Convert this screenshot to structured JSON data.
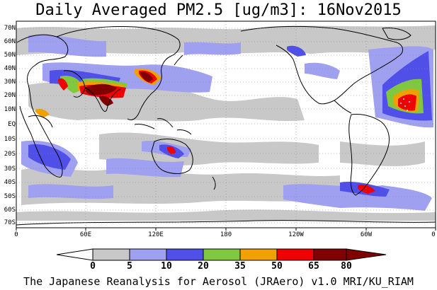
{
  "title": "Daily Averaged PM2.5 [ug/m3]: 16Nov2015",
  "footer": "The Japanese Reanalysis for Aerosol (JRAero) v1.0 MRI/KU_RIAM",
  "latitude_labels": [
    "70N",
    "60N",
    "50N",
    "40N",
    "30N",
    "20N",
    "10N",
    "EQ",
    "10S",
    "20S",
    "30S",
    "40S",
    "50S",
    "60S",
    "70S"
  ],
  "longitude_labels": [
    "0",
    "60E",
    "120E",
    "180",
    "120W",
    "60W",
    "0"
  ],
  "colorbar": {
    "labels": [
      "0",
      "5",
      "10",
      "20",
      "35",
      "50",
      "65",
      "80"
    ],
    "colors": [
      "#ffffff",
      "#c8c8c8",
      "#a0a0f0",
      "#5050e8",
      "#80c840",
      "#f0a000",
      "#f00000",
      "#800000"
    ]
  },
  "colors": {
    "ocean": "#ffffff",
    "coastline": "#000000",
    "gridline": "#888888"
  }
}
